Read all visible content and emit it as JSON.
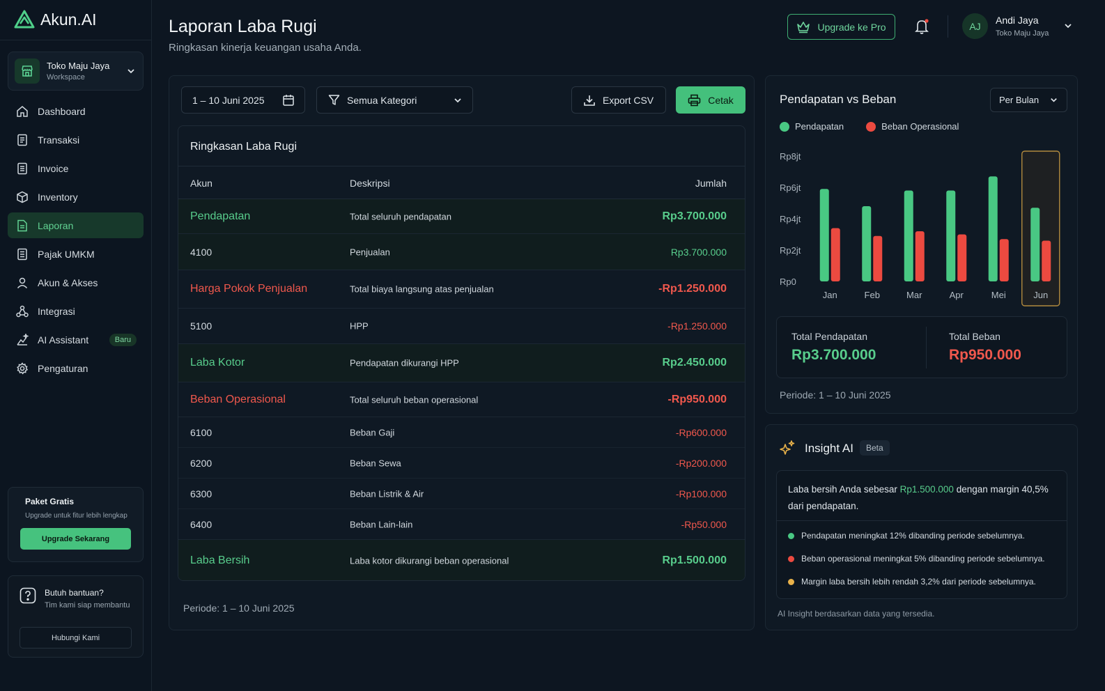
{
  "app": {
    "name": "Akun.AI"
  },
  "workspace": {
    "name": "Toko Maju Jaya",
    "label": "Workspace"
  },
  "nav": [
    {
      "label": "Dashboard",
      "icon": "home-icon"
    },
    {
      "label": "Transaksi",
      "icon": "receipt-icon"
    },
    {
      "label": "Invoice",
      "icon": "invoice-icon"
    },
    {
      "label": "Inventory",
      "icon": "box-icon"
    },
    {
      "label": "Laporan",
      "icon": "report-icon",
      "active": true
    },
    {
      "label": "Pajak UMKM",
      "icon": "tax-icon"
    },
    {
      "label": "Akun & Akses",
      "icon": "user-icon"
    },
    {
      "label": "Integrasi",
      "icon": "integration-icon"
    },
    {
      "label": "AI Assistant",
      "icon": "sparkle-chart-icon",
      "badge": "Baru"
    },
    {
      "label": "Pengaturan",
      "icon": "gear-icon"
    }
  ],
  "plan": {
    "title": "Paket Gratis",
    "subtitle": "Upgrade untuk fitur lebih lengkap",
    "button": "Upgrade Sekarang"
  },
  "help": {
    "title": "Butuh bantuan?",
    "subtitle": "Tim kami siap membantu",
    "button": "Hubungi Kami"
  },
  "header": {
    "title": "Laporan Laba Rugi",
    "subtitle": "Ringkasan kinerja keuangan usaha Anda.",
    "upgrade_label": "Upgrade ke Pro",
    "user": {
      "initials": "AJ",
      "name": "Andi Jaya",
      "org": "Toko Maju Jaya"
    }
  },
  "filters": {
    "date_range": "1 – 10 Juni 2025",
    "category": "Semua Kategori",
    "export_label": "Export CSV",
    "print_label": "Cetak"
  },
  "summary_table": {
    "title": "Ringkasan Laba Rugi",
    "headers": {
      "akun": "Akun",
      "deskripsi": "Deskripsi",
      "jumlah": "Jumlah"
    },
    "rows": [
      {
        "akun": "Pendapatan",
        "deskripsi": "Total seluruh pendapatan",
        "jumlah": "Rp3.700.000",
        "kind": "section",
        "tone": "green"
      },
      {
        "akun": "4100",
        "deskripsi": "Penjualan",
        "jumlah": "Rp3.700.000",
        "kind": "item",
        "tone": "green"
      },
      {
        "akun": "Harga Pokok Penjualan",
        "deskripsi": "Total biaya langsung atas penjualan",
        "jumlah": "-Rp1.250.000",
        "kind": "section",
        "tone": "red"
      },
      {
        "akun": "5100",
        "deskripsi": "HPP",
        "jumlah": "-Rp1.250.000",
        "kind": "item",
        "tone": "red"
      },
      {
        "akun": "Laba Kotor",
        "deskripsi": "Pendapatan dikurangi HPP",
        "jumlah": "Rp2.450.000",
        "kind": "section",
        "tone": "green"
      },
      {
        "akun": "Beban Operasional",
        "deskripsi": "Total seluruh beban operasional",
        "jumlah": "-Rp950.000",
        "kind": "section",
        "tone": "red"
      },
      {
        "akun": "6100",
        "deskripsi": "Beban Gaji",
        "jumlah": "-Rp600.000",
        "kind": "item",
        "tone": "red"
      },
      {
        "akun": "6200",
        "deskripsi": "Beban Sewa",
        "jumlah": "-Rp200.000",
        "kind": "item",
        "tone": "red"
      },
      {
        "akun": "6300",
        "deskripsi": "Beban Listrik & Air",
        "jumlah": "-Rp100.000",
        "kind": "item",
        "tone": "red"
      },
      {
        "akun": "6400",
        "deskripsi": "Beban Lain-lain",
        "jumlah": "-Rp50.000",
        "kind": "item",
        "tone": "red"
      },
      {
        "akun": "Laba Bersih",
        "deskripsi": "Laba kotor dikurangi beban operasional",
        "jumlah": "Rp1.500.000",
        "kind": "section",
        "tone": "green"
      }
    ],
    "periode": "Periode: 1 – 10 Juni 2025"
  },
  "chart_panel": {
    "title": "Pendapatan vs Beban",
    "period_select": "Per Bulan",
    "total_pendapatan_label": "Total Pendapatan",
    "total_pendapatan_value": "Rp3.700.000",
    "total_beban_label": "Total Beban",
    "total_beban_value": "Rp950.000",
    "periode": "Periode: 1 – 10 Juni 2025"
  },
  "chart_data": {
    "type": "bar",
    "categories": [
      "Jan",
      "Feb",
      "Mar",
      "Apr",
      "Mei",
      "Jun"
    ],
    "series": [
      {
        "name": "Pendapatan",
        "color": "#49c883",
        "values": [
          5.9,
          4.8,
          5.8,
          5.8,
          6.7,
          4.7
        ]
      },
      {
        "name": "Beban Operasional",
        "color": "#ec4a40",
        "values": [
          3.4,
          2.9,
          3.2,
          3.0,
          2.7,
          2.6
        ]
      }
    ],
    "y_ticks": [
      "Rp0",
      "Rp2jt",
      "Rp4jt",
      "Rp6jt",
      "Rp8jt"
    ],
    "y_unit": "juta Rupiah",
    "ylim": [
      0,
      8
    ],
    "highlight_category": "Jun",
    "legend_position": "top-left",
    "grid": false
  },
  "insight": {
    "title": "Insight AI",
    "badge": "Beta",
    "main_prefix": "Laba bersih Anda sebesar ",
    "main_value": "Rp1.500.000",
    "main_suffix": " dengan margin 40,5% dari pendapatan.",
    "bullets": [
      {
        "text": "Pendapatan meningkat 12% dibanding periode sebelumnya.",
        "color": "#49c883"
      },
      {
        "text": "Beban operasional meningkat 5% dibanding periode sebelumnya.",
        "color": "#ec4a40"
      },
      {
        "text": "Margin laba bersih lebih rendah 3,2% dari periode sebelumnya.",
        "color": "#e9b24a"
      }
    ],
    "footer": "AI Insight berdasarkan data yang tersedia."
  }
}
